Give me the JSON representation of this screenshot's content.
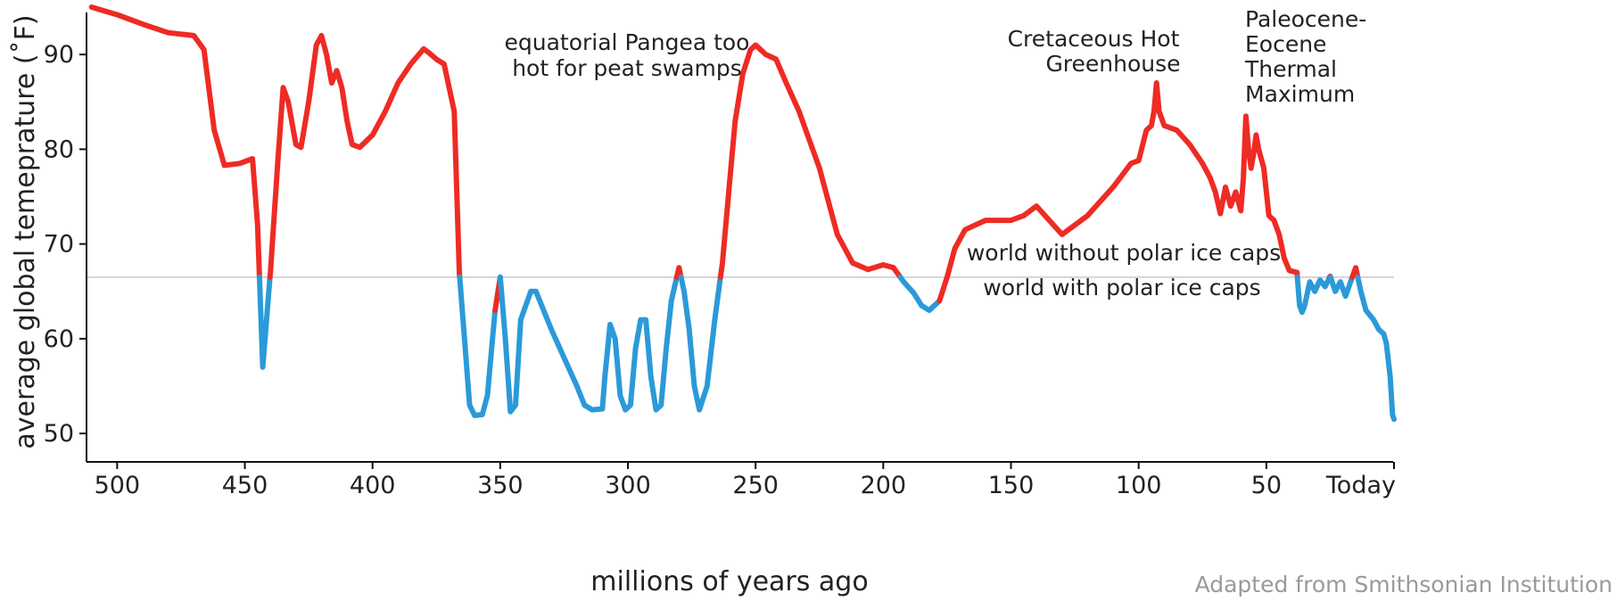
{
  "chart_data": {
    "type": "line",
    "xlabel": "millions of years ago",
    "ylabel": "average global temeprature (˚F)",
    "x_ticks": [
      {
        "value": 500,
        "label": "500"
      },
      {
        "value": 450,
        "label": "450"
      },
      {
        "value": 400,
        "label": "400"
      },
      {
        "value": 350,
        "label": "350"
      },
      {
        "value": 300,
        "label": "300"
      },
      {
        "value": 250,
        "label": "250"
      },
      {
        "value": 200,
        "label": "200"
      },
      {
        "value": 150,
        "label": "150"
      },
      {
        "value": 100,
        "label": "100"
      },
      {
        "value": 50,
        "label": "50"
      },
      {
        "value": 0,
        "label": "Today"
      }
    ],
    "y_ticks": [
      50,
      60,
      70,
      80,
      90
    ],
    "xlim": [
      512,
      0
    ],
    "ylim": [
      47,
      95
    ],
    "grid": false,
    "threshold": 66.5,
    "colors": {
      "above": "#ee2b24",
      "below": "#2b9ad8",
      "threshold_line": "#d4d4d4"
    },
    "series": [
      {
        "values": [
          [
            510,
            95.0
          ],
          [
            500,
            94.2
          ],
          [
            490,
            93.2
          ],
          [
            480,
            92.3
          ],
          [
            470,
            92.0
          ],
          [
            466,
            90.5
          ],
          [
            462,
            82.0
          ],
          [
            458,
            78.3
          ],
          [
            452,
            78.5
          ],
          [
            447,
            79.0
          ],
          [
            445,
            72.0
          ],
          [
            443,
            57.0
          ],
          [
            440,
            67.0
          ],
          [
            437,
            79.0
          ],
          [
            435,
            86.5
          ],
          [
            433,
            85.0
          ],
          [
            430,
            80.5
          ],
          [
            428,
            80.2
          ],
          [
            425,
            85.0
          ],
          [
            422,
            91.0
          ],
          [
            420,
            92.0
          ],
          [
            418,
            90.0
          ],
          [
            416,
            87.0
          ],
          [
            414,
            88.3
          ],
          [
            412,
            86.5
          ],
          [
            410,
            83.0
          ],
          [
            408,
            80.5
          ],
          [
            405,
            80.2
          ],
          [
            400,
            81.5
          ],
          [
            395,
            84.0
          ],
          [
            390,
            87.0
          ],
          [
            385,
            89.0
          ],
          [
            380,
            90.6
          ],
          [
            378,
            90.2
          ],
          [
            375,
            89.5
          ],
          [
            372,
            89.0
          ],
          [
            368,
            84.0
          ],
          [
            366,
            67.0
          ],
          [
            364,
            60.0
          ],
          [
            362,
            53.0
          ],
          [
            360,
            51.9
          ],
          [
            357,
            52.0
          ],
          [
            355,
            54.0
          ],
          [
            352,
            63.0
          ],
          [
            350,
            66.5
          ],
          [
            348,
            60.0
          ],
          [
            346,
            52.3
          ],
          [
            344,
            53.0
          ],
          [
            342,
            62.0
          ],
          [
            338,
            65.0
          ],
          [
            336,
            65.0
          ],
          [
            330,
            61.0
          ],
          [
            325,
            58.0
          ],
          [
            320,
            55.0
          ],
          [
            317,
            53.0
          ],
          [
            314,
            52.5
          ],
          [
            310,
            52.6
          ],
          [
            309,
            56.0
          ],
          [
            307,
            61.5
          ],
          [
            305,
            60.0
          ],
          [
            303,
            54.0
          ],
          [
            301,
            52.5
          ],
          [
            299,
            53.0
          ],
          [
            297,
            59.0
          ],
          [
            295,
            62.0
          ],
          [
            293,
            62.0
          ],
          [
            291,
            56.0
          ],
          [
            289,
            52.5
          ],
          [
            287,
            53.0
          ],
          [
            285,
            59.0
          ],
          [
            283,
            64.0
          ],
          [
            280,
            67.5
          ],
          [
            278,
            65.0
          ],
          [
            276,
            61.0
          ],
          [
            274,
            55.0
          ],
          [
            272,
            52.5
          ],
          [
            269,
            55.0
          ],
          [
            266,
            62.0
          ],
          [
            263,
            68.0
          ],
          [
            260,
            77.0
          ],
          [
            258,
            83.0
          ],
          [
            255,
            88.0
          ],
          [
            252,
            90.5
          ],
          [
            250,
            91.0
          ],
          [
            246,
            90.0
          ],
          [
            242,
            89.5
          ],
          [
            238,
            87.0
          ],
          [
            233,
            84.0
          ],
          [
            225,
            78.0
          ],
          [
            218,
            71.0
          ],
          [
            212,
            68.0
          ],
          [
            206,
            67.3
          ],
          [
            200,
            67.8
          ],
          [
            196,
            67.5
          ],
          [
            192,
            66.0
          ],
          [
            188,
            64.8
          ],
          [
            185,
            63.5
          ],
          [
            182,
            63.0
          ],
          [
            178,
            64.0
          ],
          [
            175,
            66.5
          ],
          [
            172,
            69.5
          ],
          [
            168,
            71.5
          ],
          [
            160,
            72.5
          ],
          [
            150,
            72.5
          ],
          [
            145,
            73.0
          ],
          [
            140,
            74.0
          ],
          [
            135,
            72.5
          ],
          [
            130,
            71.0
          ],
          [
            120,
            73.0
          ],
          [
            110,
            76.0
          ],
          [
            103,
            78.5
          ],
          [
            100,
            78.8
          ],
          [
            97,
            82.0
          ],
          [
            95,
            82.5
          ],
          [
            94,
            84.0
          ],
          [
            93,
            87.0
          ],
          [
            92,
            84.0
          ],
          [
            90,
            82.5
          ],
          [
            85,
            82.0
          ],
          [
            80,
            80.5
          ],
          [
            75,
            78.5
          ],
          [
            72,
            77.0
          ],
          [
            70,
            75.5
          ],
          [
            68,
            73.2
          ],
          [
            66,
            76.0
          ],
          [
            64,
            74.0
          ],
          [
            62,
            75.5
          ],
          [
            60,
            73.5
          ],
          [
            59,
            77.0
          ],
          [
            58,
            83.5
          ],
          [
            57,
            80.0
          ],
          [
            56,
            78.0
          ],
          [
            55,
            79.5
          ],
          [
            54,
            81.5
          ],
          [
            53,
            80.0
          ],
          [
            51,
            78.0
          ],
          [
            49,
            73.0
          ],
          [
            47,
            72.5
          ],
          [
            45,
            71.0
          ],
          [
            43,
            68.5
          ],
          [
            41,
            67.2
          ],
          [
            38,
            67.0
          ],
          [
            37,
            63.5
          ],
          [
            36,
            62.8
          ],
          [
            35,
            63.5
          ],
          [
            33,
            66.0
          ],
          [
            31,
            65.0
          ],
          [
            29,
            66.2
          ],
          [
            27,
            65.5
          ],
          [
            25,
            66.6
          ],
          [
            23,
            65.0
          ],
          [
            21,
            66.0
          ],
          [
            19,
            64.5
          ],
          [
            17,
            66.0
          ],
          [
            15,
            67.5
          ],
          [
            13,
            65.0
          ],
          [
            11,
            63.0
          ],
          [
            8,
            62.0
          ],
          [
            6,
            61.0
          ],
          [
            4,
            60.5
          ],
          [
            3,
            59.5
          ],
          [
            1.5,
            56.0
          ],
          [
            0.6,
            52.0
          ],
          [
            0,
            51.5
          ]
        ]
      }
    ],
    "annotations": {
      "pangea": [
        "equatorial Pangea too",
        "hot for peat swamps"
      ],
      "cretaceous": [
        "Cretaceous Hot",
        "Greenhouse"
      ],
      "petm": [
        "Paleocene-",
        "Eocene",
        "Thermal",
        "Maximum"
      ],
      "without_ice": "world without polar ice caps",
      "with_ice": "world with polar ice caps"
    },
    "credit": "Adapted from Smithsonian Institution"
  }
}
